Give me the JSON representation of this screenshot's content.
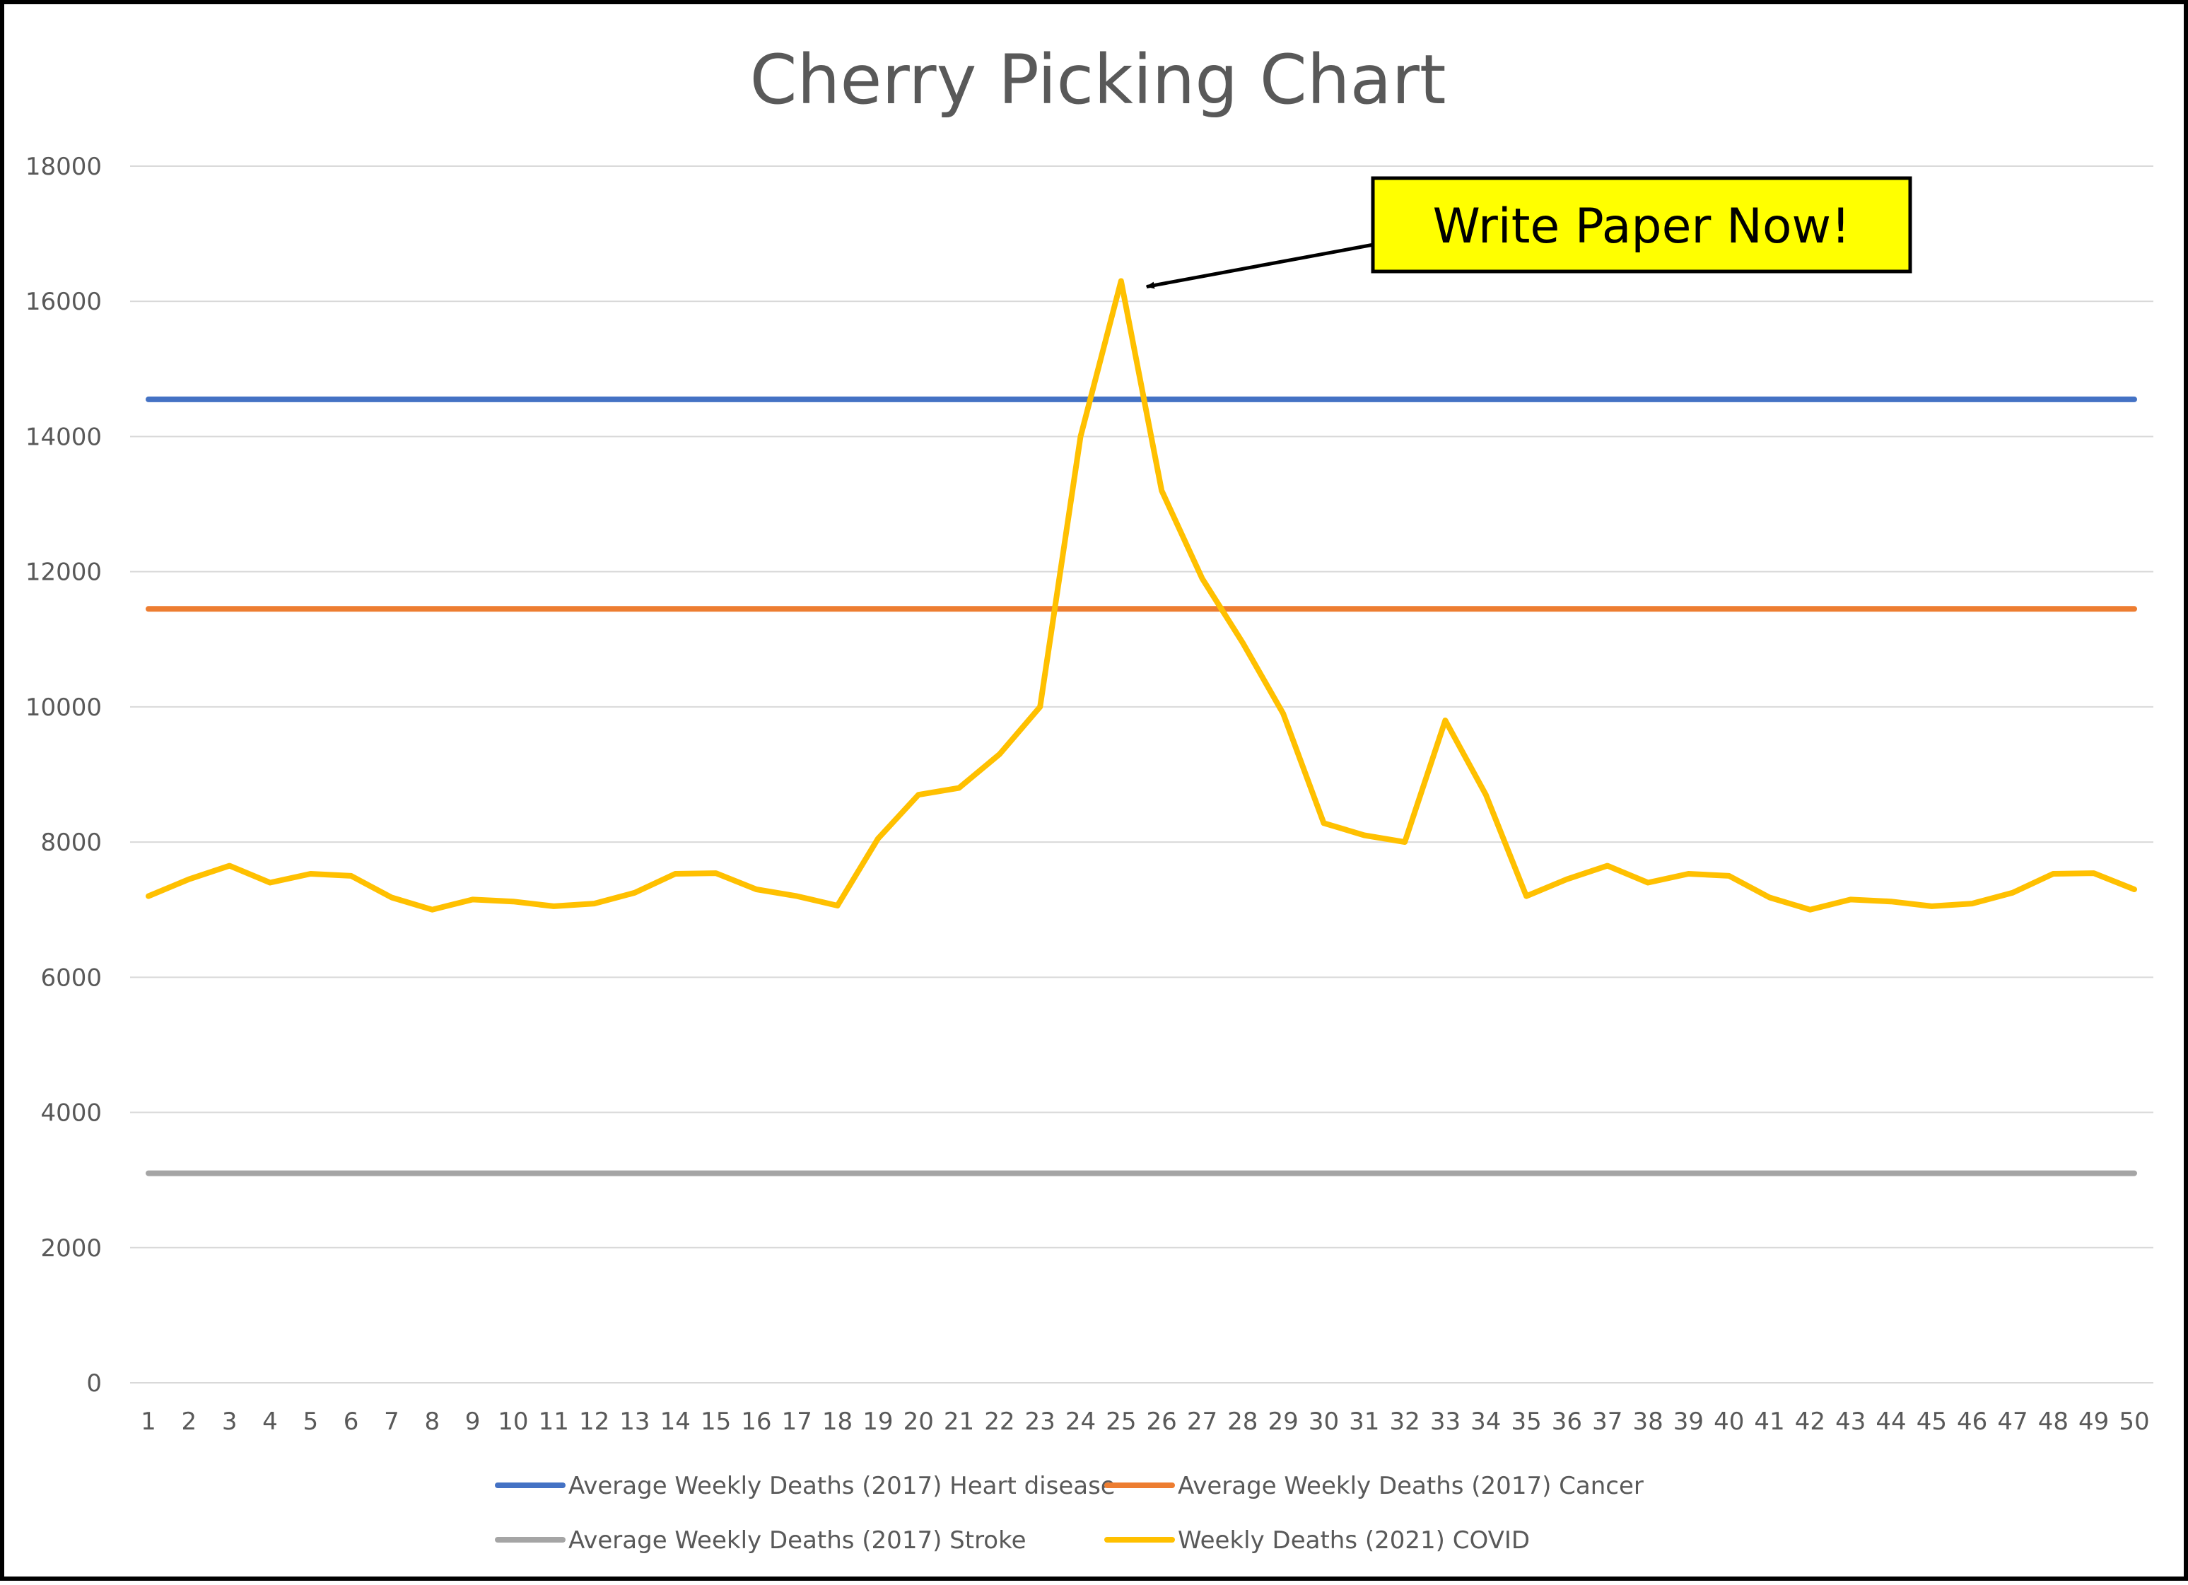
{
  "chart_data": {
    "type": "line",
    "title": "Cherry Picking Chart",
    "xlabel": "",
    "ylabel": "",
    "ylim": [
      0,
      18000
    ],
    "yticks": [
      0,
      2000,
      4000,
      6000,
      8000,
      10000,
      12000,
      14000,
      16000,
      18000
    ],
    "categories": [
      "1",
      "2",
      "3",
      "4",
      "5",
      "6",
      "7",
      "8",
      "9",
      "10",
      "11",
      "12",
      "13",
      "14",
      "15",
      "16",
      "17",
      "18",
      "19",
      "20",
      "21",
      "22",
      "23",
      "24",
      "25",
      "26",
      "27",
      "28",
      "29",
      "30",
      "31",
      "32",
      "33",
      "34",
      "35",
      "36",
      "37",
      "38",
      "39",
      "40",
      "41",
      "42",
      "43",
      "44",
      "45",
      "46",
      "47",
      "48",
      "49",
      "50"
    ],
    "grid": "horizontal",
    "legend_position": "bottom",
    "series": [
      {
        "name": "Average Weekly Deaths (2017) Heart disease",
        "color": "#4472C4",
        "values": [
          14550,
          14550,
          14550,
          14550,
          14550,
          14550,
          14550,
          14550,
          14550,
          14550,
          14550,
          14550,
          14550,
          14550,
          14550,
          14550,
          14550,
          14550,
          14550,
          14550,
          14550,
          14550,
          14550,
          14550,
          14550,
          14550,
          14550,
          14550,
          14550,
          14550,
          14550,
          14550,
          14550,
          14550,
          14550,
          14550,
          14550,
          14550,
          14550,
          14550,
          14550,
          14550,
          14550,
          14550,
          14550,
          14550,
          14550,
          14550,
          14550,
          14550
        ]
      },
      {
        "name": "Average Weekly Deaths (2017) Cancer",
        "color": "#ED7D31",
        "values": [
          11450,
          11450,
          11450,
          11450,
          11450,
          11450,
          11450,
          11450,
          11450,
          11450,
          11450,
          11450,
          11450,
          11450,
          11450,
          11450,
          11450,
          11450,
          11450,
          11450,
          11450,
          11450,
          11450,
          11450,
          11450,
          11450,
          11450,
          11450,
          11450,
          11450,
          11450,
          11450,
          11450,
          11450,
          11450,
          11450,
          11450,
          11450,
          11450,
          11450,
          11450,
          11450,
          11450,
          11450,
          11450,
          11450,
          11450,
          11450,
          11450,
          11450
        ]
      },
      {
        "name": "Average Weekly Deaths (2017) Stroke",
        "color": "#A5A5A5",
        "values": [
          3100,
          3100,
          3100,
          3100,
          3100,
          3100,
          3100,
          3100,
          3100,
          3100,
          3100,
          3100,
          3100,
          3100,
          3100,
          3100,
          3100,
          3100,
          3100,
          3100,
          3100,
          3100,
          3100,
          3100,
          3100,
          3100,
          3100,
          3100,
          3100,
          3100,
          3100,
          3100,
          3100,
          3100,
          3100,
          3100,
          3100,
          3100,
          3100,
          3100,
          3100,
          3100,
          3100,
          3100,
          3100,
          3100,
          3100,
          3100,
          3100,
          3100
        ]
      },
      {
        "name": "Weekly Deaths (2021) COVID",
        "color": "#FFC000",
        "values": [
          7200,
          7450,
          7650,
          7400,
          7530,
          7500,
          7180,
          7000,
          7150,
          7120,
          7050,
          7090,
          7250,
          7530,
          7540,
          7300,
          7200,
          7060,
          8050,
          8700,
          8800,
          9300,
          10000,
          14000,
          16300,
          13200,
          11900,
          10950,
          9900,
          8280,
          8100,
          8000,
          9800,
          8700,
          7200,
          7450,
          7650,
          7400,
          7530,
          7500,
          7180,
          7000,
          7150,
          7120,
          7050,
          7090,
          7250,
          7530,
          7540,
          7300
        ]
      }
    ],
    "annotations": [
      {
        "text": "Write Paper Now!",
        "points_to_x": "25",
        "points_to_y": 16300,
        "fill": "#FFFF00"
      }
    ]
  }
}
